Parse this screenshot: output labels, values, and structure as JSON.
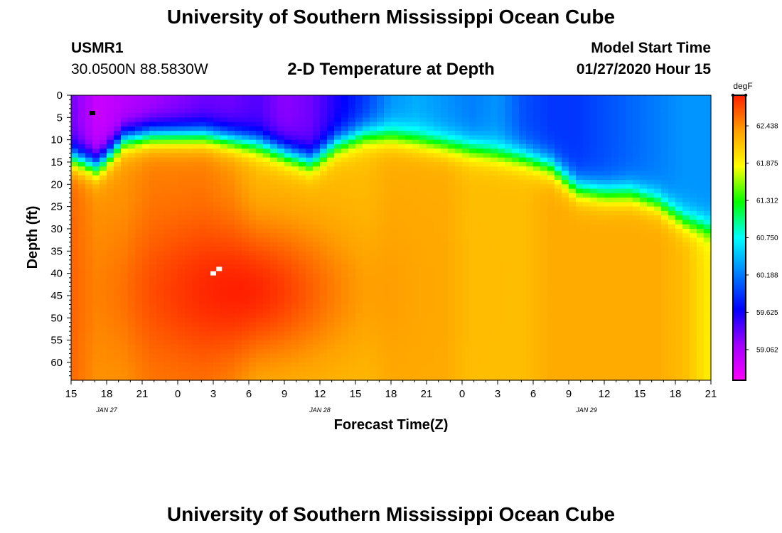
{
  "page": {
    "title": "University of Southern Mississippi Ocean Cube",
    "footer_title": "University of Southern Mississippi Ocean Cube",
    "station_id": "USMR1",
    "station_coords": "30.0500N 88.5830W",
    "model_start_label": "Model Start Time",
    "model_start_value": "01/27/2020 Hour 15"
  },
  "chart_data": {
    "type": "heatmap",
    "title": "2-D Temperature at Depth",
    "xlabel": "Forecast Time(Z)",
    "ylabel": "Depth (ft)",
    "x_tick_labels": [
      "15",
      "18",
      "21",
      "0",
      "3",
      "6",
      "9",
      "12",
      "15",
      "18",
      "21",
      "0",
      "3",
      "6",
      "9",
      "12",
      "15",
      "18",
      "21"
    ],
    "x_range_hours": [
      0,
      54
    ],
    "date_labels": [
      {
        "text": "JAN  27",
        "hour": 3
      },
      {
        "text": "JAN  28",
        "hour": 21
      },
      {
        "text": "JAN  29",
        "hour": 43.5
      }
    ],
    "y_ticks": [
      0,
      5,
      10,
      15,
      20,
      25,
      30,
      35,
      40,
      45,
      50,
      55,
      60
    ],
    "ylim": [
      0,
      64
    ],
    "colorbar": {
      "unit": "degF",
      "range": [
        58.6,
        62.9
      ],
      "tick_values": [
        "62.438",
        "61.875",
        "61.312",
        "60.750",
        "60.188",
        "59.625",
        "59.062"
      ],
      "colors": [
        "#ff00ff",
        "#a000ff",
        "#0000ff",
        "#0080ff",
        "#00ffff",
        "#00ff00",
        "#ffff00",
        "#ffa000",
        "#ff2000"
      ]
    },
    "thermocline_depth_ft": [
      14,
      16,
      10,
      9,
      9,
      9,
      10,
      11,
      13,
      15,
      11,
      9,
      9,
      10,
      11,
      12,
      13,
      14,
      16,
      21,
      22,
      22,
      24,
      28,
      30
    ],
    "surface_temp_degF": [
      59.3,
      58.9,
      59.0,
      59.1,
      59.2,
      59.3,
      59.3,
      59.4,
      59.2,
      59.3,
      59.6,
      59.9,
      60.3,
      60.4,
      60.3,
      60.2,
      60.3,
      60.0,
      59.9,
      59.9,
      60.0,
      60.1,
      60.2,
      60.3,
      60.3
    ],
    "deep_temp_degF": [
      62.6,
      62.4,
      62.4,
      62.5,
      62.5,
      62.5,
      62.4,
      62.2,
      62.2,
      62.2,
      62.2,
      62.2,
      62.3,
      62.3,
      62.3,
      62.2,
      62.2,
      62.2,
      62.3,
      62.3,
      62.3,
      62.3,
      62.3,
      62.2,
      61.9
    ],
    "warm_core": {
      "hour": 14,
      "depth_ft": 44,
      "temp_degF": 62.9
    },
    "markers": [
      {
        "kind": "data-point",
        "hour": 1.8,
        "depth_ft": 4,
        "color": "#000000"
      },
      {
        "kind": "data-point",
        "hour": 12.0,
        "depth_ft": 40,
        "color": "#ffffff"
      },
      {
        "kind": "data-point",
        "hour": 12.5,
        "depth_ft": 39,
        "color": "#ffffff"
      }
    ]
  }
}
